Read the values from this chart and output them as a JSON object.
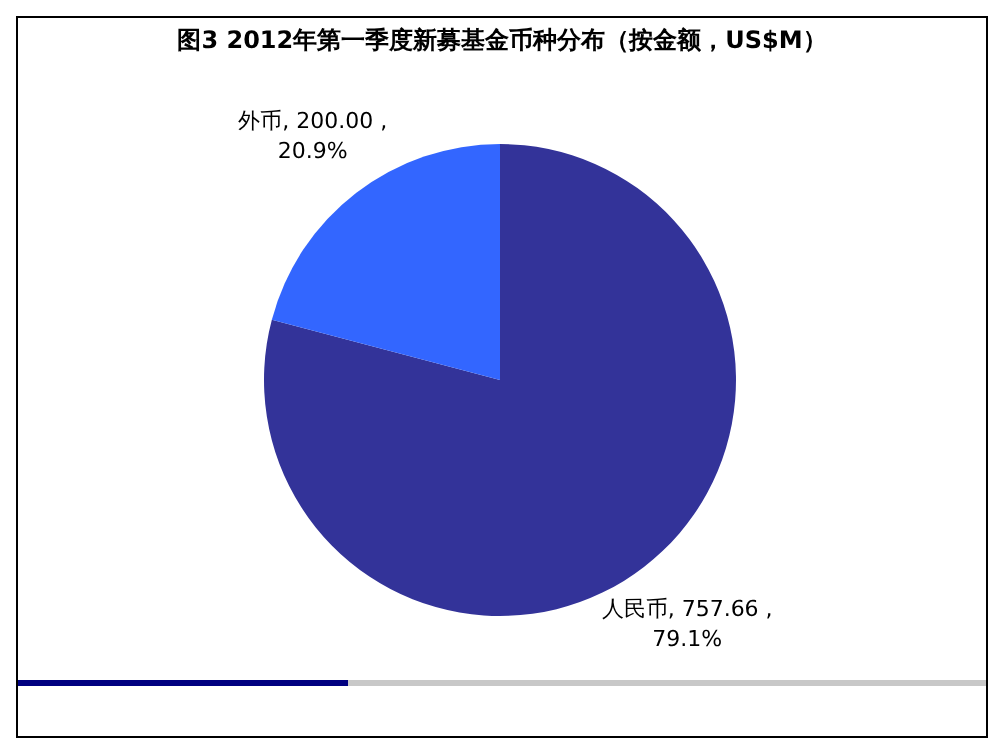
{
  "chart_data": {
    "type": "pie",
    "title": "图3  2012年第一季度新募基金币种分布（按金额，US$M）",
    "categories": [
      "人民币",
      "外币"
    ],
    "values": [
      757.66,
      200.0
    ],
    "colors": [
      "#333399",
      "#3366ff"
    ],
    "value_labels": [
      "757.66 , 79.1%",
      "200.00 , 20.9%"
    ]
  }
}
